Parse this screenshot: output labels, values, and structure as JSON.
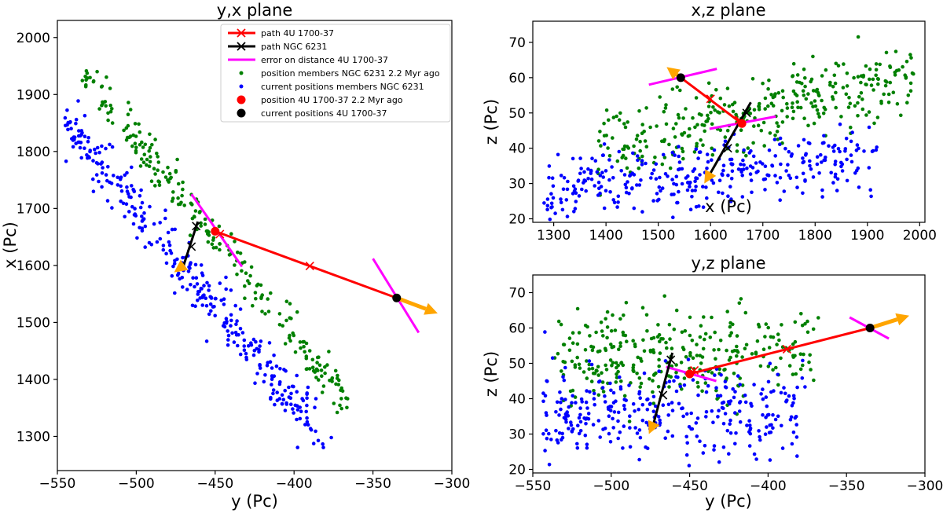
{
  "chart_data": [
    {
      "type": "scatter",
      "id": "yx",
      "title": "y,x plane",
      "xlabel": "y (Pc)",
      "ylabel": "x (Pc)",
      "xlim": [
        -550,
        -300
      ],
      "ylim": [
        1240,
        2030
      ],
      "xticks": [
        -550,
        -500,
        -450,
        -400,
        -350,
        -300
      ],
      "yticks": [
        1300,
        1400,
        1500,
        1600,
        1700,
        1800,
        1900,
        2000
      ],
      "xtick_labels": [
        "−550",
        "−500",
        "−450",
        "−400",
        "−350",
        "−300"
      ],
      "ytick_labels": [
        "1300",
        "1400",
        "1500",
        "1600",
        "1700",
        "1800",
        "1900",
        "2000"
      ],
      "clusters": {
        "past": {
          "h_start": -540,
          "h_end": -367,
          "v_start": 1960,
          "v_end": 1365,
          "spread": 5,
          "count": 240,
          "seed": 11
        },
        "current": {
          "h_start": -545,
          "h_end": -378,
          "v_start": 1855,
          "v_end": 1280,
          "spread": 6,
          "count": 330,
          "seed": 23
        }
      },
      "path_4u": {
        "start": [
          -335,
          1543
        ],
        "end": [
          -450,
          1660
        ],
        "crosses": [
          [
            -390,
            1599
          ],
          [
            -447,
            1655
          ]
        ]
      },
      "path_ngc": {
        "start": [
          -470,
          1600
        ],
        "end": [
          -461,
          1677
        ],
        "crosses": [
          [
            -465,
            1633
          ],
          [
            -462,
            1669
          ]
        ]
      },
      "error_4u": [
        [
          [
            -350,
            1612
          ],
          [
            -321,
            1482
          ]
        ],
        [
          [
            -465,
            1725
          ],
          [
            -433,
            1598
          ]
        ]
      ],
      "arrow_4u": {
        "from": [
          -335,
          1543
        ],
        "to": [
          -309,
          1516
        ]
      },
      "arrow_ngc": {
        "from": [
          -470,
          1600
        ],
        "to": [
          -476,
          1588
        ]
      },
      "marker_4u_past": [
        -450,
        1660
      ],
      "marker_4u_now": [
        -335,
        1543
      ],
      "marker_ngc_past": [
        -461,
        1677
      ],
      "marker_ngc_now": [
        -470,
        1600
      ],
      "legend": {
        "items": [
          {
            "kind": "line-x",
            "color": "#ff0000",
            "label": "path 4U 1700-37"
          },
          {
            "kind": "line-x",
            "color": "#000000",
            "label": "path NGC 6231"
          },
          {
            "kind": "line",
            "color": "#ff00ff",
            "label": "error on distance 4U 1700-37"
          },
          {
            "kind": "dot-small",
            "color": "#008000",
            "label": "position members NGC 6231 2.2 Myr ago"
          },
          {
            "kind": "dot-small",
            "color": "#0000ff",
            "label": "current positions members NGC 6231"
          },
          {
            "kind": "dot-big",
            "color": "#ff0000",
            "label": "position 4U 1700-37 2.2 Myr ago"
          },
          {
            "kind": "dot-big",
            "color": "#000000",
            "label": "current positions 4U 1700-37"
          }
        ]
      }
    },
    {
      "type": "scatter",
      "id": "xz",
      "title": "x,z plane",
      "xlabel": "x (Pc)",
      "ylabel": "z (Pc)",
      "xlim": [
        1260,
        2010
      ],
      "ylim": [
        19,
        76
      ],
      "xticks": [
        1300,
        1400,
        1500,
        1600,
        1700,
        1800,
        1900,
        2000
      ],
      "yticks": [
        20,
        30,
        40,
        50,
        60,
        70
      ],
      "xtick_labels": [
        "1300",
        "1400",
        "1500",
        "1600",
        "1700",
        "1800",
        "1900",
        "2000"
      ],
      "ytick_labels": [
        "20",
        "30",
        "40",
        "50",
        "60",
        "70"
      ],
      "clusters": {
        "past": {
          "h_start": 1380,
          "h_end": 1990,
          "v_start": 40,
          "v_end": 60,
          "spread": 5,
          "count": 330,
          "seed": 37
        },
        "current": {
          "h_start": 1280,
          "h_end": 1910,
          "v_start": 27,
          "v_end": 38,
          "spread": 5,
          "count": 330,
          "seed": 41
        }
      },
      "path_4u": {
        "start": [
          1543,
          60
        ],
        "end": [
          1660,
          47
        ],
        "crosses": [
          [
            1600,
            54
          ],
          [
            1655,
            48
          ]
        ]
      },
      "path_ngc": {
        "start": [
          1600,
          33
        ],
        "end": [
          1677,
          53
        ],
        "crosses": [
          [
            1633,
            40
          ],
          [
            1669,
            50
          ]
        ]
      },
      "error_4u": [
        [
          [
            1482,
            58
          ],
          [
            1612,
            62.5
          ]
        ],
        [
          [
            1598,
            45.5
          ],
          [
            1725,
            49
          ]
        ]
      ],
      "arrow_4u": {
        "from": [
          1543,
          60
        ],
        "to": [
          1516,
          63
        ]
      },
      "arrow_ngc": {
        "from": [
          1600,
          33
        ],
        "to": [
          1588,
          30
        ]
      },
      "marker_4u_past": [
        1660,
        47
      ],
      "marker_4u_now": [
        1543,
        60
      ],
      "marker_ngc_past": [
        1677,
        53
      ],
      "marker_ngc_now": [
        1600,
        33
      ]
    },
    {
      "type": "scatter",
      "id": "yz",
      "title": "y,z plane",
      "xlabel": "y (Pc)",
      "ylabel": "z (Pc)",
      "xlim": [
        -550,
        -300
      ],
      "ylim": [
        19,
        75
      ],
      "xticks": [
        -550,
        -500,
        -450,
        -400,
        -350,
        -300
      ],
      "yticks": [
        20,
        30,
        40,
        50,
        60,
        70
      ],
      "xtick_labels": [
        "−550",
        "−500",
        "−450",
        "−400",
        "−350",
        "−300"
      ],
      "ytick_labels": [
        "20",
        "30",
        "40",
        "50",
        "60",
        "70"
      ],
      "clusters": {
        "past": {
          "h_start": -540,
          "h_end": -370,
          "v_start": 52,
          "v_end": 52,
          "spread": 7,
          "count": 300,
          "seed": 53
        },
        "current": {
          "h_start": -545,
          "h_end": -378,
          "v_start": 36,
          "v_end": 36,
          "spread": 6,
          "count": 320,
          "seed": 59
        }
      },
      "path_4u": {
        "start": [
          -335,
          60
        ],
        "end": [
          -450,
          47
        ],
        "crosses": [
          [
            -388,
            54
          ],
          [
            -447,
            48
          ]
        ]
      },
      "path_ngc": {
        "start": [
          -473,
          33
        ],
        "end": [
          -461,
          53
        ],
        "crosses": [
          [
            -467,
            41
          ],
          [
            -462,
            51
          ]
        ]
      },
      "error_4u": [
        [
          [
            -348,
            63
          ],
          [
            -323,
            57
          ]
        ],
        [
          [
            -465,
            49
          ],
          [
            -433,
            45
          ]
        ]
      ],
      "arrow_4u": {
        "from": [
          -335,
          60
        ],
        "to": [
          -310,
          63.5
        ]
      },
      "arrow_ngc": {
        "from": [
          -473,
          33
        ],
        "to": [
          -476,
          30
        ]
      },
      "marker_4u_past": [
        -450,
        47
      ],
      "marker_4u_now": [
        -335,
        60
      ],
      "marker_ngc_past": [
        -461,
        53
      ],
      "marker_ngc_now": [
        -473,
        33
      ]
    }
  ],
  "colors": {
    "past_members": "#008000",
    "current_members": "#0000ff",
    "path_4u": "#ff0000",
    "path_ngc": "#000000",
    "error": "#ff00ff",
    "arrow": "#ffa500"
  }
}
